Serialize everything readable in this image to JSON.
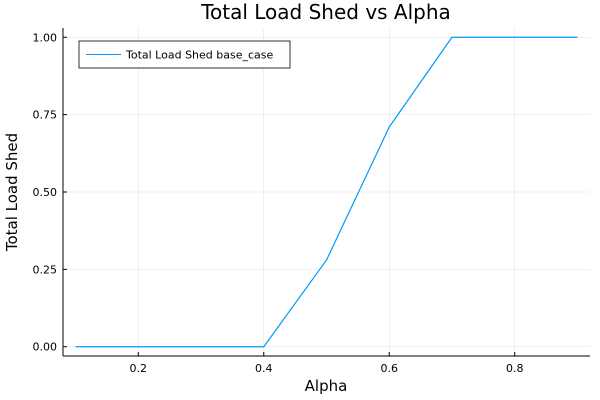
{
  "chart_data": {
    "type": "line",
    "title": "Total Load Shed vs Alpha",
    "xlabel": "Alpha",
    "ylabel": "Total Load Shed",
    "xlim": [
      0.08,
      0.92
    ],
    "ylim": [
      -0.03,
      1.03
    ],
    "xticks": [
      0.2,
      0.4,
      0.6,
      0.8
    ],
    "xtick_labels": [
      "0.2",
      "0.4",
      "0.6",
      "0.8"
    ],
    "yticks": [
      0.0,
      0.25,
      0.5,
      0.75,
      1.0
    ],
    "ytick_labels": [
      "0.00",
      "0.25",
      "0.50",
      "0.75",
      "1.00"
    ],
    "grid": true,
    "legend_position": "top-left",
    "series": [
      {
        "name": "Total Load Shed base_case",
        "color": "#009AFA",
        "x": [
          0.1,
          0.2,
          0.3,
          0.4,
          0.5,
          0.6,
          0.7,
          0.8,
          0.9
        ],
        "y": [
          0.0,
          0.0,
          0.0,
          0.0,
          0.28,
          0.71,
          1.0,
          1.0,
          1.0
        ]
      }
    ]
  }
}
